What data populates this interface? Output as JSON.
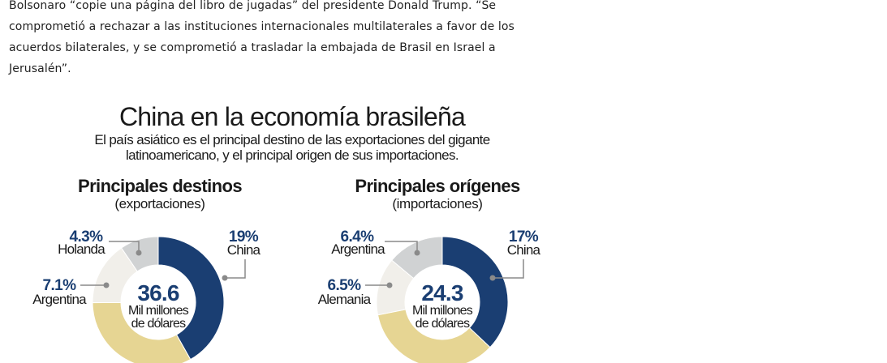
{
  "article": {
    "lines": [
      "Bolsonaro “copie una página del libro de jugadas” del presidente Donald Trump. “Se",
      "comprometió a rechazar a las instituciones internacionales multilaterales a favor de los",
      "acuerdos bilaterales, y se comprometió a trasladar la embajada de Brasil en Israel a",
      "Jerusalén”."
    ]
  },
  "infographic": {
    "title": "China en la economía brasileña",
    "subtitle_lines": [
      "El país asiático es el principal destino de las exportaciones del gigante",
      "latinoamericano, y el principal origen de sus importaciones."
    ]
  },
  "chart_data": [
    {
      "type": "pie",
      "donut": true,
      "title": "Principales destinos",
      "subtitle": "(exportaciones)",
      "center_value": "36.6",
      "center_unit_lines": [
        "Mil millones",
        "de dólares"
      ],
      "slices": [
        {
          "label": "China",
          "display": "19%",
          "value": 19,
          "color": "#1a3e72"
        },
        {
          "label": "",
          "display": "",
          "value": 15,
          "color": "#e6d593"
        },
        {
          "label": "Argentina",
          "display": "7.1%",
          "value": 7.1,
          "color": "#f1efea"
        },
        {
          "label": "Holanda",
          "display": "4.3%",
          "value": 4.3,
          "color": "#d0d2d3"
        }
      ]
    },
    {
      "type": "pie",
      "donut": true,
      "title": "Principales orígenes",
      "subtitle": "(importaciones)",
      "center_value": "24.3",
      "center_unit_lines": [
        "Mil millones",
        "de dólares"
      ],
      "slices": [
        {
          "label": "China",
          "display": "17%",
          "value": 17,
          "color": "#1a3e72"
        },
        {
          "label": "",
          "display": "",
          "value": 16,
          "color": "#e6d593"
        },
        {
          "label": "Alemania",
          "display": "6.5%",
          "value": 6.5,
          "color": "#f1efea"
        },
        {
          "label": "Argentina",
          "display": "6.4%",
          "value": 6.4,
          "color": "#d0d2d3"
        }
      ]
    }
  ]
}
